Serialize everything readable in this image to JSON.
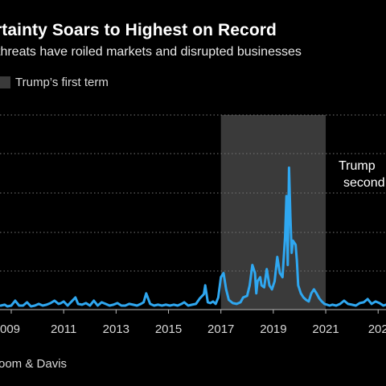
{
  "header": {
    "title": "rtainty Soars to Highest on Record",
    "subtitle": "threats have roiled markets and disrupted businesses"
  },
  "legend": {
    "shaded_label": "Trump’s first term"
  },
  "source": "oom & Davis",
  "colors": {
    "background": "#000000",
    "line": "#2fa7f0",
    "shade": "#3a3a3a",
    "grid": "#777777",
    "axis": "#bbbbbb"
  },
  "chart_data": {
    "type": "line",
    "title": "rtainty Soars to Highest on Record",
    "subtitle": "threats have roiled markets and disrupted businesses",
    "xlabel": "",
    "ylabel": "",
    "x_ticks": [
      "009",
      "2011",
      "2013",
      "2015",
      "2017",
      "2019",
      "2021",
      "202"
    ],
    "xlim": [
      2008.57,
      2023.3
    ],
    "ylim": [
      0,
      480
    ],
    "grid": true,
    "legend_position": "top-left",
    "shaded_regions": [
      {
        "label": "Trump’s first term",
        "x_start": 2017.0,
        "x_end": 2021.0
      }
    ],
    "annotations": [
      {
        "lines": [
          "Trump",
          "second"
        ],
        "x": 2021.6,
        "y": 370
      }
    ],
    "series": [
      {
        "name": "",
        "x": [
          2008.6,
          2008.75,
          2008.85,
          2009.0,
          2009.15,
          2009.3,
          2009.45,
          2009.6,
          2009.75,
          2009.9,
          2010.05,
          2010.2,
          2010.35,
          2010.5,
          2010.65,
          2010.8,
          2010.9,
          2011.0,
          2011.15,
          2011.3,
          2011.45,
          2011.55,
          2011.7,
          2011.85,
          2012.0,
          2012.15,
          2012.3,
          2012.45,
          2012.6,
          2012.75,
          2012.9,
          2013.05,
          2013.2,
          2013.35,
          2013.5,
          2013.65,
          2013.8,
          2013.95,
          2014.05,
          2014.15,
          2014.3,
          2014.45,
          2014.6,
          2014.75,
          2014.9,
          2015.05,
          2015.2,
          2015.35,
          2015.5,
          2015.6,
          2015.75,
          2015.9,
          2016.05,
          2016.2,
          2016.35,
          2016.4,
          2016.5,
          2016.6,
          2016.7,
          2016.8,
          2016.9,
          2017.0,
          2017.1,
          2017.2,
          2017.3,
          2017.45,
          2017.6,
          2017.75,
          2017.85,
          2018.0,
          2018.1,
          2018.2,
          2018.3,
          2018.35,
          2018.4,
          2018.5,
          2018.55,
          2018.65,
          2018.75,
          2018.85,
          2018.95,
          2019.05,
          2019.15,
          2019.25,
          2019.35,
          2019.45,
          2019.5,
          2019.55,
          2019.6,
          2019.65,
          2019.7,
          2019.75,
          2019.85,
          2019.9,
          2019.95,
          2020.05,
          2020.15,
          2020.25,
          2020.35,
          2020.45,
          2020.55,
          2020.65,
          2020.75,
          2020.85,
          2020.95,
          2021.05,
          2021.15,
          2021.25,
          2021.4,
          2021.55,
          2021.7,
          2021.85,
          2022.0,
          2022.15,
          2022.3,
          2022.45,
          2022.6,
          2022.75,
          2022.9,
          2023.05,
          2023.2,
          2023.3
        ],
        "values": [
          10,
          12,
          8,
          10,
          22,
          10,
          10,
          18,
          8,
          10,
          14,
          10,
          12,
          16,
          22,
          14,
          16,
          20,
          10,
          20,
          30,
          14,
          12,
          16,
          10,
          22,
          10,
          18,
          14,
          10,
          12,
          16,
          10,
          10,
          14,
          12,
          10,
          14,
          18,
          40,
          14,
          10,
          12,
          10,
          12,
          10,
          12,
          10,
          14,
          18,
          10,
          12,
          14,
          28,
          38,
          60,
          18,
          16,
          20,
          14,
          30,
          80,
          90,
          50,
          24,
          16,
          14,
          18,
          30,
          34,
          60,
          110,
          90,
          40,
          70,
          80,
          60,
          55,
          100,
          60,
          50,
          70,
          130,
          90,
          80,
          180,
          280,
          110,
          350,
          230,
          140,
          170,
          160,
          120,
          60,
          40,
          30,
          24,
          20,
          40,
          50,
          40,
          28,
          20,
          14,
          12,
          10,
          12,
          10,
          14,
          22,
          14,
          12,
          10,
          16,
          18,
          26,
          14,
          20,
          16,
          10,
          12
        ]
      }
    ]
  }
}
